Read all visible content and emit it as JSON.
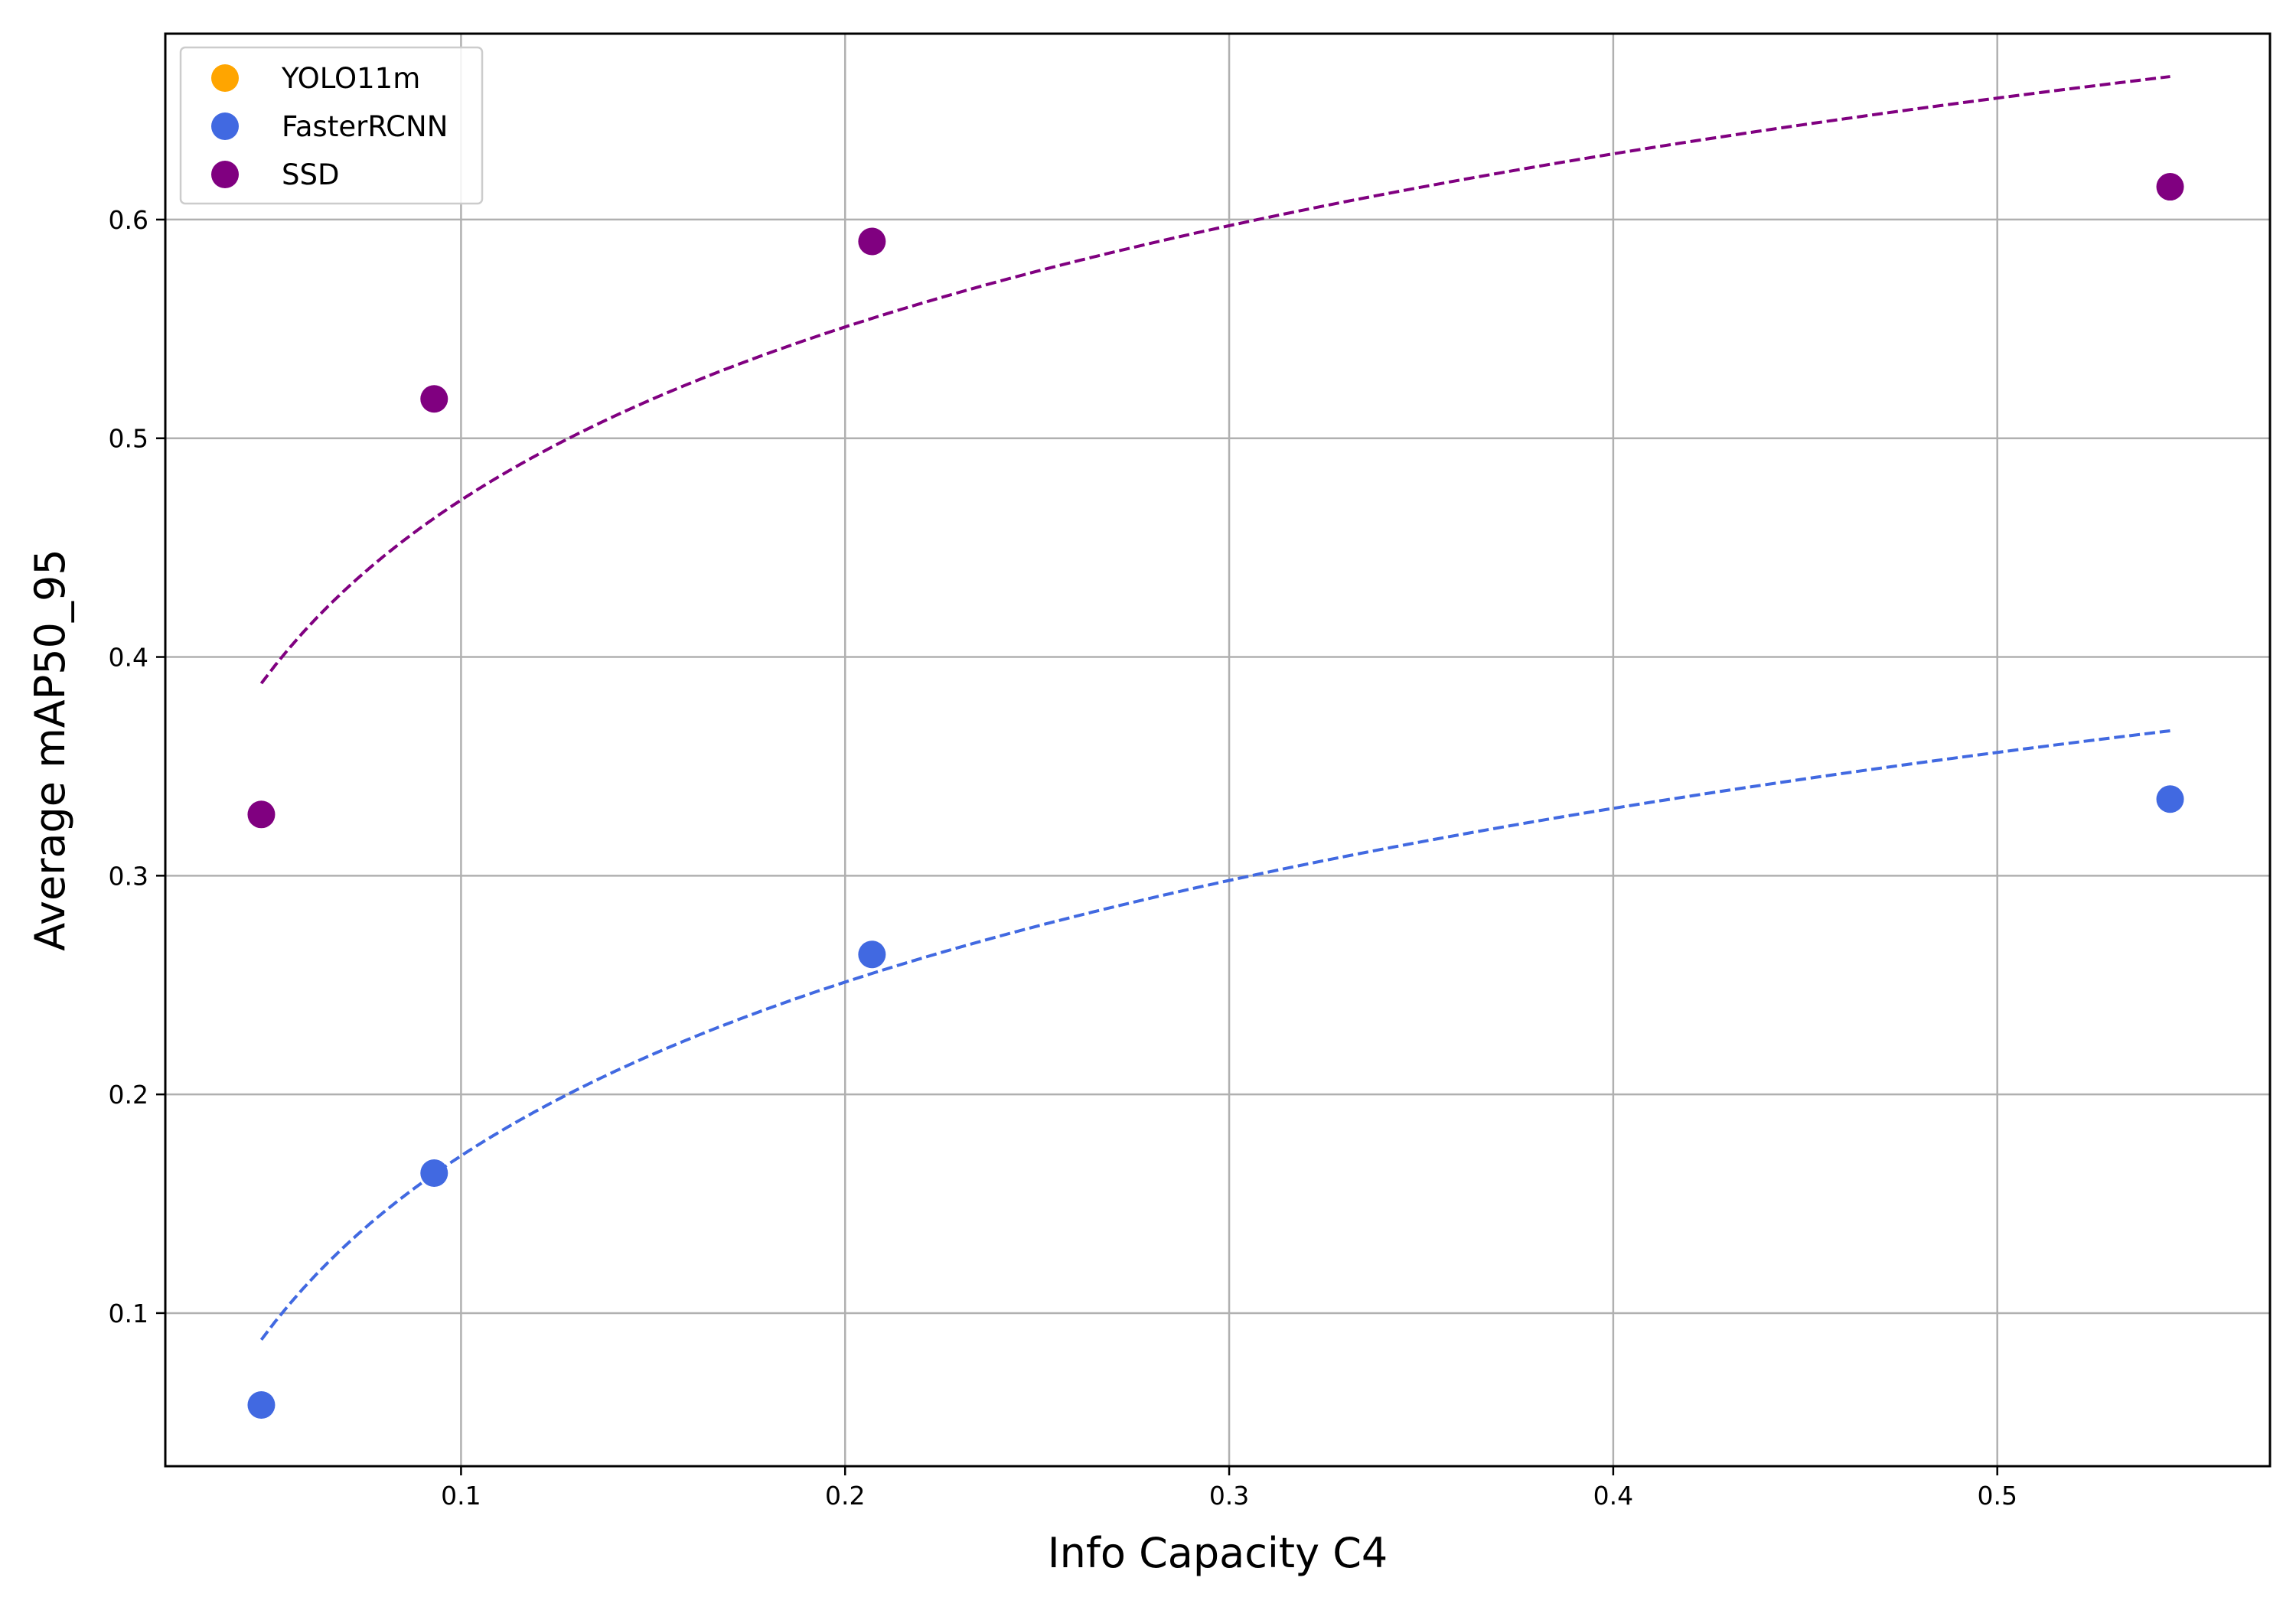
{
  "chart_data": {
    "type": "scatter",
    "title": "",
    "xlabel": "Info Capacity C4",
    "ylabel": "Average mAP50_95",
    "xlim": [
      0.023,
      0.571
    ],
    "ylim": [
      0.03,
      0.685
    ],
    "xticks": [
      0.1,
      0.2,
      0.3,
      0.4,
      0.5
    ],
    "xtick_labels": [
      "0.1",
      "0.2",
      "0.3",
      "0.4",
      "0.5"
    ],
    "yticks": [
      0.1,
      0.2,
      0.3,
      0.4,
      0.5,
      0.6
    ],
    "ytick_labels": [
      "0.1",
      "0.2",
      "0.3",
      "0.4",
      "0.5",
      "0.6"
    ],
    "grid": true,
    "legend_position": "top-left",
    "series": [
      {
        "name": "YOLO11m",
        "color": "#ffa500",
        "x": [],
        "y": [],
        "fit": null
      },
      {
        "name": "FasterRCNN",
        "color": "#4169e1",
        "x": [
          0.048,
          0.093,
          0.207,
          0.545
        ],
        "y": [
          0.058,
          0.164,
          0.264,
          0.335
        ],
        "fit": {
          "kind": "logarithmic",
          "a": 0.4358,
          "b": 0.1146,
          "style": "dashed",
          "x_range": [
            0.048,
            0.545
          ]
        }
      },
      {
        "name": "SSD",
        "color": "#800080",
        "x": [
          0.048,
          0.093,
          0.207,
          0.545
        ],
        "y": [
          0.328,
          0.518,
          0.59,
          0.615
        ],
        "fit": {
          "kind": "logarithmic",
          "a": 0.7347,
          "b": 0.1142,
          "style": "dashed",
          "x_range": [
            0.048,
            0.545
          ]
        }
      }
    ]
  }
}
